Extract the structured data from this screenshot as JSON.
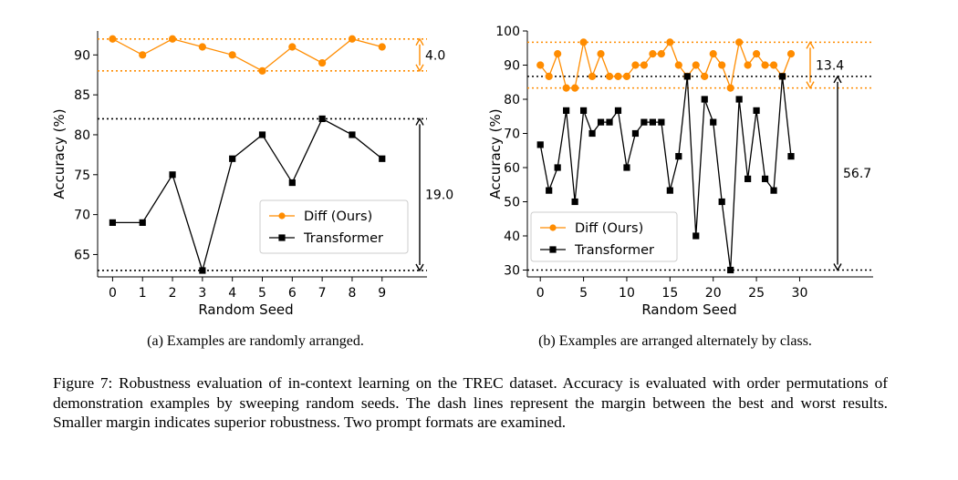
{
  "figure": {
    "number_label": "Figure 7:",
    "caption": "Robustness evaluation of in-context learning on the TREC dataset. Accuracy is evaluated with order permutations of demonstration examples by sweeping random seeds. The dash lines represent the margin between the best and worst results. Smaller margin indicates superior robustness. Two prompt formats are examined."
  },
  "colors": {
    "diff": "#ff8c00",
    "transformer": "#000000"
  },
  "chart_data": [
    {
      "type": "line",
      "subcaption": "(a) Examples are randomly arranged.",
      "xlabel": "Random Seed",
      "ylabel": "Accuracy (%)",
      "xlim": [
        -0.5,
        10.5
      ],
      "ylim": [
        62.2,
        93.0
      ],
      "x_ticks": [
        0,
        1,
        2,
        3,
        4,
        5,
        6,
        7,
        8,
        9
      ],
      "y_ticks": [
        65,
        70,
        75,
        80,
        85,
        90
      ],
      "grid": false,
      "legend_position": "center-right",
      "series": [
        {
          "name": "Diff (Ours)",
          "marker": "circle",
          "x": [
            0,
            1,
            2,
            3,
            4,
            5,
            6,
            7,
            8,
            9
          ],
          "values": [
            92,
            90,
            92,
            91,
            90,
            88,
            91,
            89,
            92,
            91
          ]
        },
        {
          "name": "Transformer",
          "marker": "square",
          "x": [
            0,
            1,
            2,
            3,
            4,
            5,
            6,
            7,
            8,
            9
          ],
          "values": [
            69,
            69,
            75,
            63,
            77,
            80,
            74,
            82,
            80,
            77
          ]
        }
      ],
      "margin_lines": [
        {
          "series": "Diff (Ours)",
          "max": 92,
          "min": 88,
          "label": "4.0"
        },
        {
          "series": "Transformer",
          "max": 82,
          "min": 63,
          "label": "19.0"
        }
      ]
    },
    {
      "type": "line",
      "subcaption": "(b) Examples are arranged alternately by class.",
      "xlabel": "Random Seed",
      "ylabel": "Accuracy (%)",
      "xlim": [
        -1.5,
        38.5
      ],
      "ylim": [
        28.0,
        100.0
      ],
      "x_ticks": [
        0,
        5,
        10,
        15,
        20,
        25,
        30
      ],
      "y_ticks": [
        30,
        40,
        50,
        60,
        70,
        80,
        90,
        100
      ],
      "grid": false,
      "legend_position": "lower-left",
      "series": [
        {
          "name": "Diff (Ours)",
          "marker": "circle",
          "x": [
            0,
            1,
            2,
            3,
            4,
            5,
            6,
            7,
            8,
            9,
            10,
            11,
            12,
            13,
            14,
            15,
            16,
            17,
            18,
            19,
            20,
            21,
            22,
            23,
            24,
            25,
            26,
            27,
            28,
            29
          ],
          "values": [
            90,
            86.7,
            93.3,
            83.3,
            83.3,
            96.7,
            86.7,
            93.3,
            86.7,
            86.7,
            86.7,
            90,
            90,
            93.3,
            93.3,
            96.7,
            90,
            86.7,
            90,
            86.7,
            93.3,
            90,
            83.3,
            96.7,
            90,
            93.3,
            90,
            90,
            86.7,
            93.3
          ]
        },
        {
          "name": "Transformer",
          "marker": "square",
          "x": [
            0,
            1,
            2,
            3,
            4,
            5,
            6,
            7,
            8,
            9,
            10,
            11,
            12,
            13,
            14,
            15,
            16,
            17,
            18,
            19,
            20,
            21,
            22,
            23,
            24,
            25,
            26,
            27,
            28,
            29
          ],
          "values": [
            66.7,
            53.3,
            60,
            76.7,
            50,
            76.7,
            70,
            73.3,
            73.3,
            76.7,
            60,
            70,
            73.3,
            73.3,
            73.3,
            53.3,
            63.3,
            86.7,
            40,
            80,
            73.3,
            50,
            30,
            80,
            56.7,
            76.7,
            56.7,
            53.3,
            86.7,
            63.3
          ]
        }
      ],
      "margin_lines": [
        {
          "series": "Diff (Ours)",
          "max": 96.7,
          "min": 83.3,
          "label": "13.4"
        },
        {
          "series": "Transformer",
          "max": 86.7,
          "min": 30,
          "label": "56.7"
        }
      ]
    }
  ]
}
